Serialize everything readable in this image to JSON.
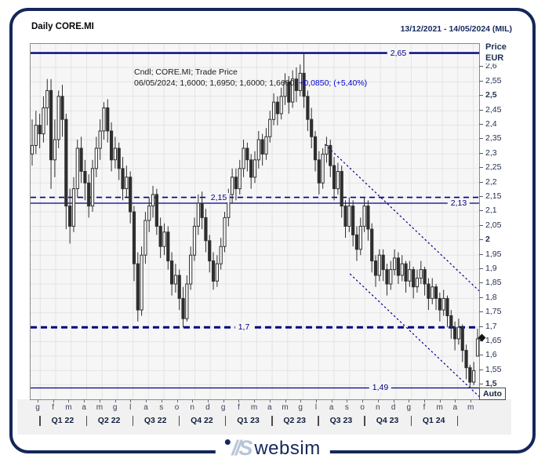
{
  "header": {
    "title": "Daily CORE.MI",
    "date_range": "13/12/2021 - 14/05/2024 (MIL)"
  },
  "legend": {
    "line1": "Cndl; CORE.MI; Trade Price",
    "line2_values": "06/05/2024; 1,6000; 1,6950; 1,6000; 1,6600; ",
    "line2_change": "+0,0850; (+5,40%)"
  },
  "y_axis": {
    "unit_label_1": "Price",
    "unit_label_2": "EUR",
    "ticks": [
      "2,6",
      "2,55",
      "2,5",
      "2,45",
      "2,4",
      "2,35",
      "2,3",
      "2,25",
      "2,2",
      "2,15",
      "2,1",
      "2,05",
      "2",
      "1,95",
      "1,9",
      "1,85",
      "1,8",
      "1,75",
      "1,7",
      "1,65",
      "1,6",
      "1,55",
      "1,5"
    ],
    "bold": [
      "2,5",
      "2",
      "1,5"
    ]
  },
  "x_axis": {
    "months": [
      "g",
      "f",
      "m",
      "a",
      "m",
      "g",
      "l",
      "a",
      "s",
      "o",
      "n",
      "d",
      "g",
      "f",
      "m",
      "a",
      "m",
      "g",
      "l",
      "a",
      "s",
      "o",
      "n",
      "d",
      "g",
      "f",
      "m",
      "a",
      "m"
    ],
    "quarters": [
      "Q1 22",
      "Q2 22",
      "Q3 22",
      "Q4 22",
      "Q1 23",
      "Q2 23",
      "Q3 23",
      "Q4 23",
      "Q1 24"
    ]
  },
  "controls": {
    "auto_button": "Auto"
  },
  "price_marker": {
    "shape": "diamond",
    "price": 1.66
  },
  "footer_logo": {
    "mark": "//S",
    "text": "websim"
  },
  "colors": {
    "navy_line": "#00007f",
    "change_blue": "#0000d0",
    "candle": "#2e2e2e",
    "grid": "#e4e4e4",
    "plot_bg": "#f6f6f6",
    "frame_navy": "#14275a"
  },
  "chart_data": {
    "type": "candlestick",
    "title": "Daily CORE.MI",
    "instrument": "CORE.MI",
    "currency": "EUR",
    "x_range": [
      "13/12/2021",
      "14/05/2024"
    ],
    "ylim": [
      1.45,
      2.68
    ],
    "grid": true,
    "levels": [
      {
        "label": "2,65",
        "price": 2.65,
        "style": "solid",
        "weight": 2.4,
        "label_x": 0.82
      },
      {
        "label": "2,15",
        "price": 2.15,
        "style": "dashed",
        "weight": 1.6,
        "label_x": 0.42
      },
      {
        "label": "2,13",
        "price": 2.13,
        "style": "solid",
        "weight": 1.3,
        "label_x": 0.955
      },
      {
        "label": "1,7",
        "price": 1.7,
        "style": "dashed-bold",
        "weight": 3.0,
        "label_x": 0.475
      },
      {
        "label": "1,49",
        "price": 1.49,
        "style": "solid",
        "weight": 1.3,
        "label_x": 0.78
      }
    ],
    "trendlines": [
      {
        "x1": 0.656,
        "p1": 2.334,
        "x2": 1.0,
        "p2": 1.826
      },
      {
        "x1": 0.712,
        "p1": 1.885,
        "x2": 1.0,
        "p2": 1.46
      }
    ],
    "last_trade": {
      "date": "06/05/2024",
      "open": 1.6,
      "high": 1.695,
      "low": 1.6,
      "close": 1.66,
      "net_change": 0.085,
      "pct_change": 5.4
    },
    "ohlc": [
      [
        2.3,
        2.42,
        2.26,
        2.33
      ],
      [
        2.33,
        2.45,
        2.3,
        2.4
      ],
      [
        2.4,
        2.44,
        2.32,
        2.37
      ],
      [
        2.37,
        2.5,
        2.34,
        2.46
      ],
      [
        2.46,
        2.56,
        2.4,
        2.52
      ],
      [
        2.52,
        2.56,
        2.18,
        2.28
      ],
      [
        2.28,
        2.42,
        2.22,
        2.35
      ],
      [
        2.35,
        2.52,
        2.32,
        2.5
      ],
      [
        2.5,
        2.54,
        2.36,
        2.42
      ],
      [
        2.42,
        2.44,
        2.04,
        2.12
      ],
      [
        2.12,
        2.18,
        1.99,
        2.05
      ],
      [
        2.05,
        2.22,
        2.03,
        2.18
      ],
      [
        2.18,
        2.35,
        2.15,
        2.32
      ],
      [
        2.32,
        2.36,
        2.2,
        2.24
      ],
      [
        2.24,
        2.28,
        2.14,
        2.2
      ],
      [
        2.2,
        2.23,
        2.08,
        2.12
      ],
      [
        2.12,
        2.28,
        2.1,
        2.25
      ],
      [
        2.25,
        2.36,
        2.22,
        2.32
      ],
      [
        2.32,
        2.42,
        2.28,
        2.38
      ],
      [
        2.38,
        2.48,
        2.35,
        2.46
      ],
      [
        2.46,
        2.49,
        2.34,
        2.38
      ],
      [
        2.38,
        2.41,
        2.24,
        2.28
      ],
      [
        2.28,
        2.36,
        2.25,
        2.32
      ],
      [
        2.32,
        2.34,
        2.21,
        2.25
      ],
      [
        2.25,
        2.29,
        2.14,
        2.18
      ],
      [
        2.18,
        2.26,
        2.15,
        2.22
      ],
      [
        2.22,
        2.24,
        2.06,
        2.1
      ],
      [
        2.1,
        2.12,
        1.86,
        1.92
      ],
      [
        1.92,
        1.96,
        1.72,
        1.76
      ],
      [
        1.76,
        1.98,
        1.74,
        1.95
      ],
      [
        1.95,
        2.1,
        1.92,
        2.07
      ],
      [
        2.07,
        2.15,
        2.03,
        2.12
      ],
      [
        2.12,
        2.19,
        2.08,
        2.16
      ],
      [
        2.16,
        2.18,
        2.02,
        2.05
      ],
      [
        2.05,
        2.08,
        1.94,
        1.98
      ],
      [
        1.98,
        2.06,
        1.95,
        2.03
      ],
      [
        2.03,
        2.05,
        1.9,
        1.93
      ],
      [
        1.93,
        1.96,
        1.81,
        1.85
      ],
      [
        1.85,
        1.92,
        1.82,
        1.88
      ],
      [
        1.88,
        1.9,
        1.76,
        1.8
      ],
      [
        1.8,
        1.84,
        1.7,
        1.73
      ],
      [
        1.73,
        1.88,
        1.72,
        1.85
      ],
      [
        1.85,
        1.98,
        1.83,
        1.95
      ],
      [
        1.95,
        2.08,
        1.93,
        2.05
      ],
      [
        2.05,
        2.16,
        2.02,
        2.13
      ],
      [
        2.13,
        2.17,
        2.04,
        2.08
      ],
      [
        2.08,
        2.11,
        1.96,
        2.0
      ],
      [
        2.0,
        2.02,
        1.89,
        1.93
      ],
      [
        1.93,
        1.96,
        1.83,
        1.86
      ],
      [
        1.86,
        1.95,
        1.84,
        1.92
      ],
      [
        1.92,
        2.01,
        1.9,
        1.98
      ],
      [
        1.98,
        2.1,
        1.96,
        2.08
      ],
      [
        2.08,
        2.18,
        2.05,
        2.16
      ],
      [
        2.16,
        2.25,
        2.13,
        2.22
      ],
      [
        2.22,
        2.25,
        2.14,
        2.18
      ],
      [
        2.18,
        2.28,
        2.16,
        2.25
      ],
      [
        2.25,
        2.35,
        2.22,
        2.32
      ],
      [
        2.32,
        2.34,
        2.24,
        2.28
      ],
      [
        2.28,
        2.3,
        2.18,
        2.22
      ],
      [
        2.22,
        2.31,
        2.2,
        2.28
      ],
      [
        2.28,
        2.38,
        2.25,
        2.35
      ],
      [
        2.35,
        2.37,
        2.26,
        2.3
      ],
      [
        2.3,
        2.39,
        2.28,
        2.36
      ],
      [
        2.36,
        2.45,
        2.34,
        2.42
      ],
      [
        2.42,
        2.51,
        2.4,
        2.48
      ],
      [
        2.48,
        2.5,
        2.4,
        2.44
      ],
      [
        2.44,
        2.53,
        2.42,
        2.5
      ],
      [
        2.5,
        2.58,
        2.47,
        2.55
      ],
      [
        2.55,
        2.57,
        2.44,
        2.48
      ],
      [
        2.48,
        2.59,
        2.46,
        2.56
      ],
      [
        2.56,
        2.6,
        2.48,
        2.52
      ],
      [
        2.52,
        2.61,
        2.5,
        2.58
      ],
      [
        2.58,
        2.65,
        2.46,
        2.5
      ],
      [
        2.5,
        2.52,
        2.38,
        2.42
      ],
      [
        2.42,
        2.46,
        2.32,
        2.36
      ],
      [
        2.36,
        2.38,
        2.24,
        2.28
      ],
      [
        2.28,
        2.31,
        2.16,
        2.2
      ],
      [
        2.2,
        2.32,
        2.18,
        2.3
      ],
      [
        2.3,
        2.36,
        2.27,
        2.33
      ],
      [
        2.33,
        2.35,
        2.22,
        2.26
      ],
      [
        2.26,
        2.29,
        2.14,
        2.18
      ],
      [
        2.18,
        2.27,
        2.16,
        2.24
      ],
      [
        2.24,
        2.26,
        2.08,
        2.12
      ],
      [
        2.12,
        2.14,
        2.01,
        2.05
      ],
      [
        2.05,
        2.15,
        2.03,
        2.12
      ],
      [
        2.12,
        2.14,
        1.98,
        2.02
      ],
      [
        2.02,
        2.05,
        1.93,
        1.97
      ],
      [
        1.97,
        2.08,
        1.95,
        2.05
      ],
      [
        2.05,
        2.15,
        2.03,
        2.12
      ],
      [
        2.12,
        2.14,
        2.0,
        2.04
      ],
      [
        2.04,
        2.06,
        1.89,
        1.93
      ],
      [
        1.93,
        1.95,
        1.84,
        1.88
      ],
      [
        1.88,
        1.97,
        1.86,
        1.95
      ],
      [
        1.95,
        1.97,
        1.86,
        1.9
      ],
      [
        1.9,
        1.92,
        1.81,
        1.85
      ],
      [
        1.85,
        1.93,
        1.83,
        1.9
      ],
      [
        1.9,
        1.97,
        1.88,
        1.94
      ],
      [
        1.94,
        1.96,
        1.85,
        1.88
      ],
      [
        1.88,
        1.95,
        1.86,
        1.92
      ],
      [
        1.92,
        1.93,
        1.82,
        1.86
      ],
      [
        1.86,
        1.93,
        1.84,
        1.9
      ],
      [
        1.9,
        1.91,
        1.8,
        1.84
      ],
      [
        1.84,
        1.9,
        1.82,
        1.87
      ],
      [
        1.87,
        1.93,
        1.85,
        1.9
      ],
      [
        1.9,
        1.91,
        1.81,
        1.85
      ],
      [
        1.85,
        1.87,
        1.76,
        1.8
      ],
      [
        1.8,
        1.87,
        1.78,
        1.84
      ],
      [
        1.84,
        1.85,
        1.76,
        1.8
      ],
      [
        1.8,
        1.82,
        1.72,
        1.76
      ],
      [
        1.76,
        1.83,
        1.74,
        1.8
      ],
      [
        1.8,
        1.81,
        1.7,
        1.74
      ],
      [
        1.74,
        1.76,
        1.66,
        1.7
      ],
      [
        1.7,
        1.72,
        1.62,
        1.66
      ],
      [
        1.66,
        1.73,
        1.64,
        1.7
      ],
      [
        1.7,
        1.71,
        1.58,
        1.62
      ],
      [
        1.62,
        1.64,
        1.52,
        1.56
      ],
      [
        1.56,
        1.57,
        1.49,
        1.51
      ],
      [
        1.51,
        1.58,
        1.5,
        1.55
      ],
      [
        1.6,
        1.695,
        1.6,
        1.66
      ]
    ]
  }
}
